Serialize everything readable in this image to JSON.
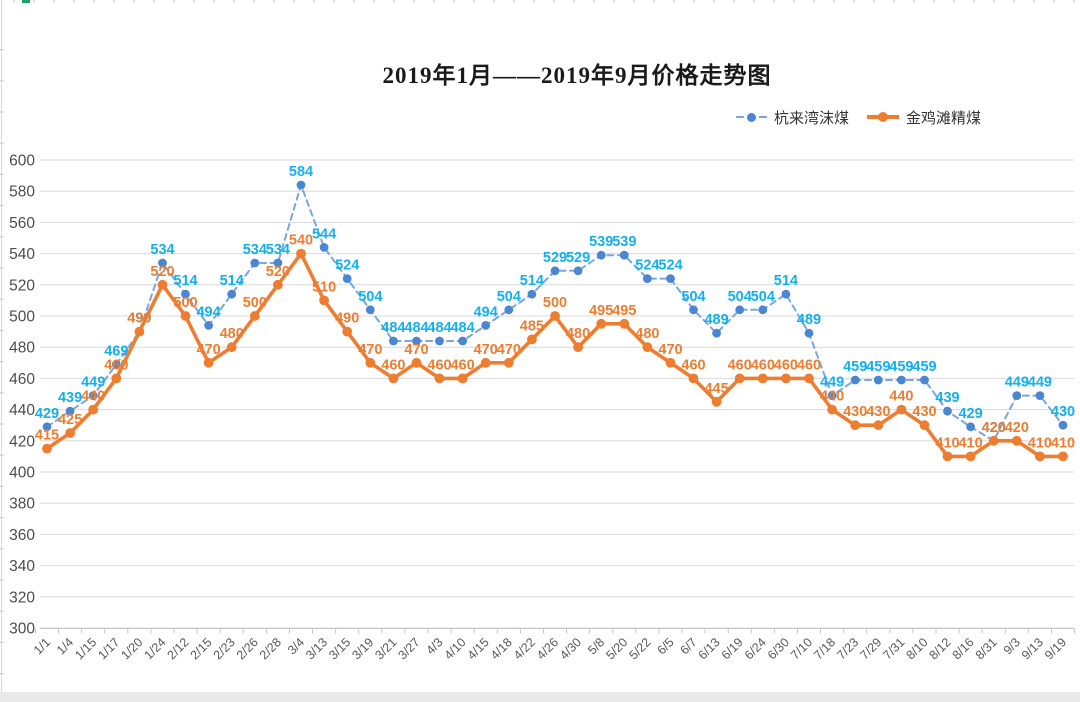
{
  "chart": {
    "title": "2019年1月——2019年9月价格走势图",
    "legend": {
      "items": [
        {
          "label": "杭来湾沫煤"
        },
        {
          "label": "金鸡滩精煤"
        }
      ]
    }
  },
  "chart_data": {
    "type": "line",
    "title": "2019年1月——2019年9月价格走势图",
    "categories": [
      "1/1",
      "1/4",
      "1/15",
      "1/17",
      "1/20",
      "1/24",
      "2/12",
      "2/15",
      "2/23",
      "2/26",
      "2/28",
      "3/4",
      "3/13",
      "3/15",
      "3/19",
      "3/21",
      "3/27",
      "4/3",
      "4/10",
      "4/15",
      "4/18",
      "4/22",
      "4/26",
      "4/30",
      "5/8",
      "5/20",
      "5/22",
      "6/5",
      "6/7",
      "6/13",
      "6/19",
      "6/24",
      "6/30",
      "7/10",
      "7/18",
      "7/23",
      "7/29",
      "7/31",
      "8/10",
      "8/12",
      "8/16",
      "8/31",
      "9/3",
      "9/13",
      "9/19"
    ],
    "series": [
      {
        "name": "杭来湾沫煤",
        "line_style": "dashed",
        "line_color": "#79a7dd",
        "marker_color": "#4a86d2",
        "label_color": "#12b0f0",
        "values": [
          429,
          439,
          449,
          469,
          490,
          534,
          514,
          494,
          514,
          534,
          534,
          584,
          544,
          524,
          504,
          484,
          484,
          484,
          484,
          494,
          504,
          514,
          529,
          529,
          539,
          539,
          524,
          524,
          504,
          489,
          504,
          504,
          514,
          489,
          449,
          459,
          459,
          459,
          459,
          439,
          429,
          420,
          449,
          449,
          430
        ]
      },
      {
        "name": "金鸡滩精煤",
        "line_style": "solid",
        "line_color": "#ed7d31",
        "marker_color": "#ed7d31",
        "label_color": "#ed7d31",
        "values": [
          415,
          425,
          440,
          460,
          490,
          520,
          500,
          470,
          480,
          500,
          520,
          540,
          510,
          490,
          470,
          460,
          470,
          460,
          460,
          470,
          470,
          485,
          500,
          480,
          495,
          495,
          480,
          470,
          460,
          445,
          460,
          460,
          460,
          460,
          440,
          430,
          430,
          440,
          430,
          410,
          410,
          420,
          420,
          410,
          410
        ]
      }
    ],
    "ylim": [
      300,
      600
    ],
    "ytick_step": 20,
    "yticks": [
      300,
      320,
      340,
      360,
      380,
      400,
      420,
      440,
      460,
      480,
      500,
      520,
      540,
      560,
      580,
      600
    ],
    "grid": true,
    "data_labels": true,
    "legend_position": "top-right",
    "grid_color": "#d9d9d9",
    "axis_line_color": "#c6c6c6",
    "ytick_label_color": "#4d4d4d",
    "xtick_label_color": "#595959"
  }
}
